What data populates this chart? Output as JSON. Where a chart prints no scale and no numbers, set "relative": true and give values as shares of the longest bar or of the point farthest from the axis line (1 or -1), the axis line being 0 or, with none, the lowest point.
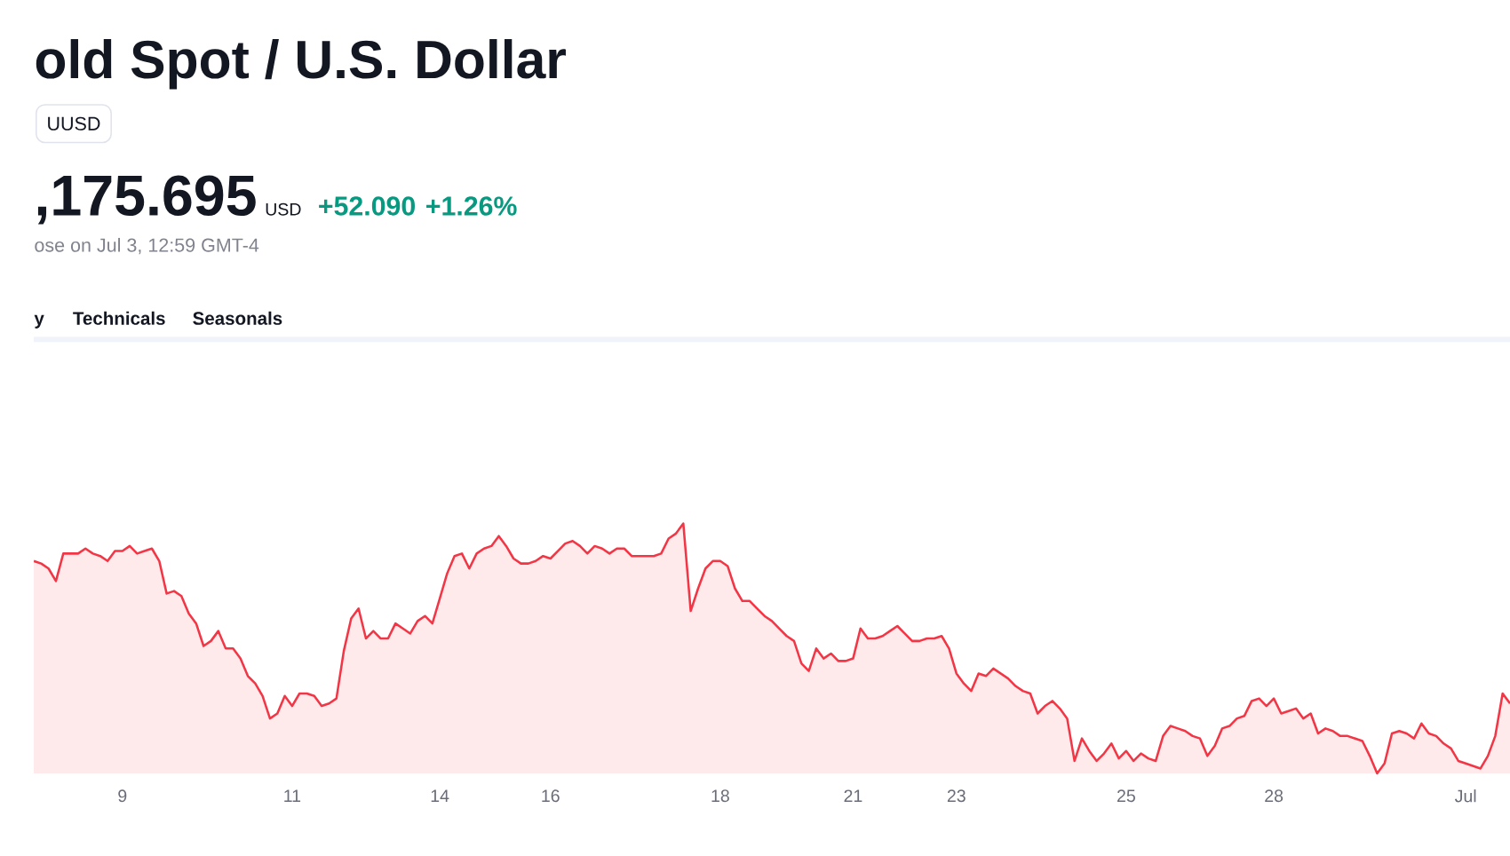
{
  "chart_data": {
    "type": "area",
    "title": "old Spot / U.S. Dollar",
    "annotations": [
      "UUSD",
      ",175.695",
      "USD",
      "+52.090",
      "+1.26%",
      "ose on Jul 3, 12:59 GMT-4",
      "y",
      "Technicals",
      "Seasonals"
    ],
    "relative": true,
    "color": "#f23645",
    "categories": [
      null,
      null,
      null,
      null,
      null,
      null,
      null,
      null,
      null,
      null,
      null,
      null,
      "9",
      null,
      null,
      null,
      null,
      null,
      null,
      null,
      null,
      null,
      null,
      null,
      null,
      null,
      null,
      null,
      null,
      null,
      null,
      null,
      null,
      null,
      null,
      "11",
      null,
      null,
      null,
      null,
      null,
      null,
      null,
      null,
      null,
      null,
      null,
      null,
      null,
      null,
      null,
      null,
      null,
      null,
      null,
      "14",
      null,
      null,
      null,
      null,
      null,
      null,
      null,
      null,
      null,
      null,
      null,
      null,
      null,
      null,
      "16",
      null,
      null,
      null,
      null,
      null,
      null,
      null,
      null,
      null,
      null,
      null,
      null,
      null,
      null,
      null,
      null,
      null,
      null,
      null,
      null,
      null,
      null,
      "18",
      null,
      null,
      null,
      null,
      null,
      null,
      null,
      null,
      null,
      null,
      null,
      null,
      null,
      null,
      null,
      null,
      null,
      "21",
      null,
      null,
      null,
      null,
      null,
      null,
      null,
      null,
      null,
      null,
      null,
      null,
      null,
      "23",
      null,
      null,
      null,
      null,
      null,
      null,
      null,
      null,
      null,
      null,
      null,
      null,
      null,
      null,
      null,
      null,
      null,
      null,
      null,
      null,
      null,
      null,
      "25",
      null,
      null,
      null,
      null,
      null,
      null,
      null,
      null,
      null,
      null,
      null,
      null,
      null,
      null,
      null,
      null,
      null,
      null,
      null,
      "28",
      null,
      null,
      null,
      null,
      null,
      null,
      null,
      null,
      null,
      null,
      null,
      null,
      null,
      null,
      null,
      null,
      null,
      null,
      null,
      null,
      null,
      null,
      null,
      null,
      null,
      "Jul",
      null,
      null,
      null,
      null,
      null,
      null
    ],
    "values": [
      0.85,
      0.84,
      0.82,
      0.77,
      0.88,
      0.88,
      0.88,
      0.9,
      0.88,
      0.87,
      0.85,
      0.89,
      0.89,
      0.91,
      0.88,
      0.89,
      0.9,
      0.85,
      0.72,
      0.73,
      0.71,
      0.64,
      0.6,
      0.51,
      0.53,
      0.57,
      0.5,
      0.5,
      0.46,
      0.39,
      0.36,
      0.31,
      0.22,
      0.24,
      0.31,
      0.27,
      0.32,
      0.32,
      0.31,
      0.27,
      0.28,
      0.3,
      0.49,
      0.62,
      0.66,
      0.54,
      0.57,
      0.54,
      0.54,
      0.6,
      0.58,
      0.56,
      0.61,
      0.63,
      0.6,
      0.7,
      0.8,
      0.87,
      0.88,
      0.82,
      0.88,
      0.9,
      0.91,
      0.95,
      0.91,
      0.86,
      0.84,
      0.84,
      0.85,
      0.87,
      0.86,
      0.89,
      0.92,
      0.93,
      0.91,
      0.88,
      0.91,
      0.9,
      0.88,
      0.9,
      0.9,
      0.87,
      0.87,
      0.87,
      0.87,
      0.88,
      0.94,
      0.96,
      1.0,
      0.65,
      0.74,
      0.82,
      0.85,
      0.85,
      0.83,
      0.74,
      0.69,
      0.69,
      0.66,
      0.63,
      0.61,
      0.58,
      0.55,
      0.53,
      0.44,
      0.41,
      0.5,
      0.46,
      0.48,
      0.45,
      0.45,
      0.46,
      0.58,
      0.54,
      0.54,
      0.55,
      0.57,
      0.59,
      0.56,
      0.53,
      0.53,
      0.54,
      0.54,
      0.55,
      0.5,
      0.4,
      0.36,
      0.33,
      0.4,
      0.39,
      0.42,
      0.4,
      0.38,
      0.35,
      0.33,
      0.32,
      0.24,
      0.27,
      0.29,
      0.26,
      0.22,
      0.05,
      0.14,
      0.09,
      0.05,
      0.08,
      0.12,
      0.06,
      0.09,
      0.05,
      0.08,
      0.06,
      0.05,
      0.15,
      0.19,
      0.18,
      0.17,
      0.15,
      0.14,
      0.07,
      0.11,
      0.18,
      0.19,
      0.22,
      0.23,
      0.29,
      0.3,
      0.27,
      0.3,
      0.24,
      0.25,
      0.26,
      0.22,
      0.24,
      0.16,
      0.18,
      0.17,
      0.15,
      0.15,
      0.14,
      0.13,
      0.07,
      0,
      0.04,
      0.16,
      0.17,
      0.16,
      0.14,
      0.2,
      0.16,
      0.15,
      0.12,
      0.1,
      0.05,
      0.04,
      0.03,
      0.02,
      0.07,
      0.15,
      0.32,
      0.28
    ]
  }
}
